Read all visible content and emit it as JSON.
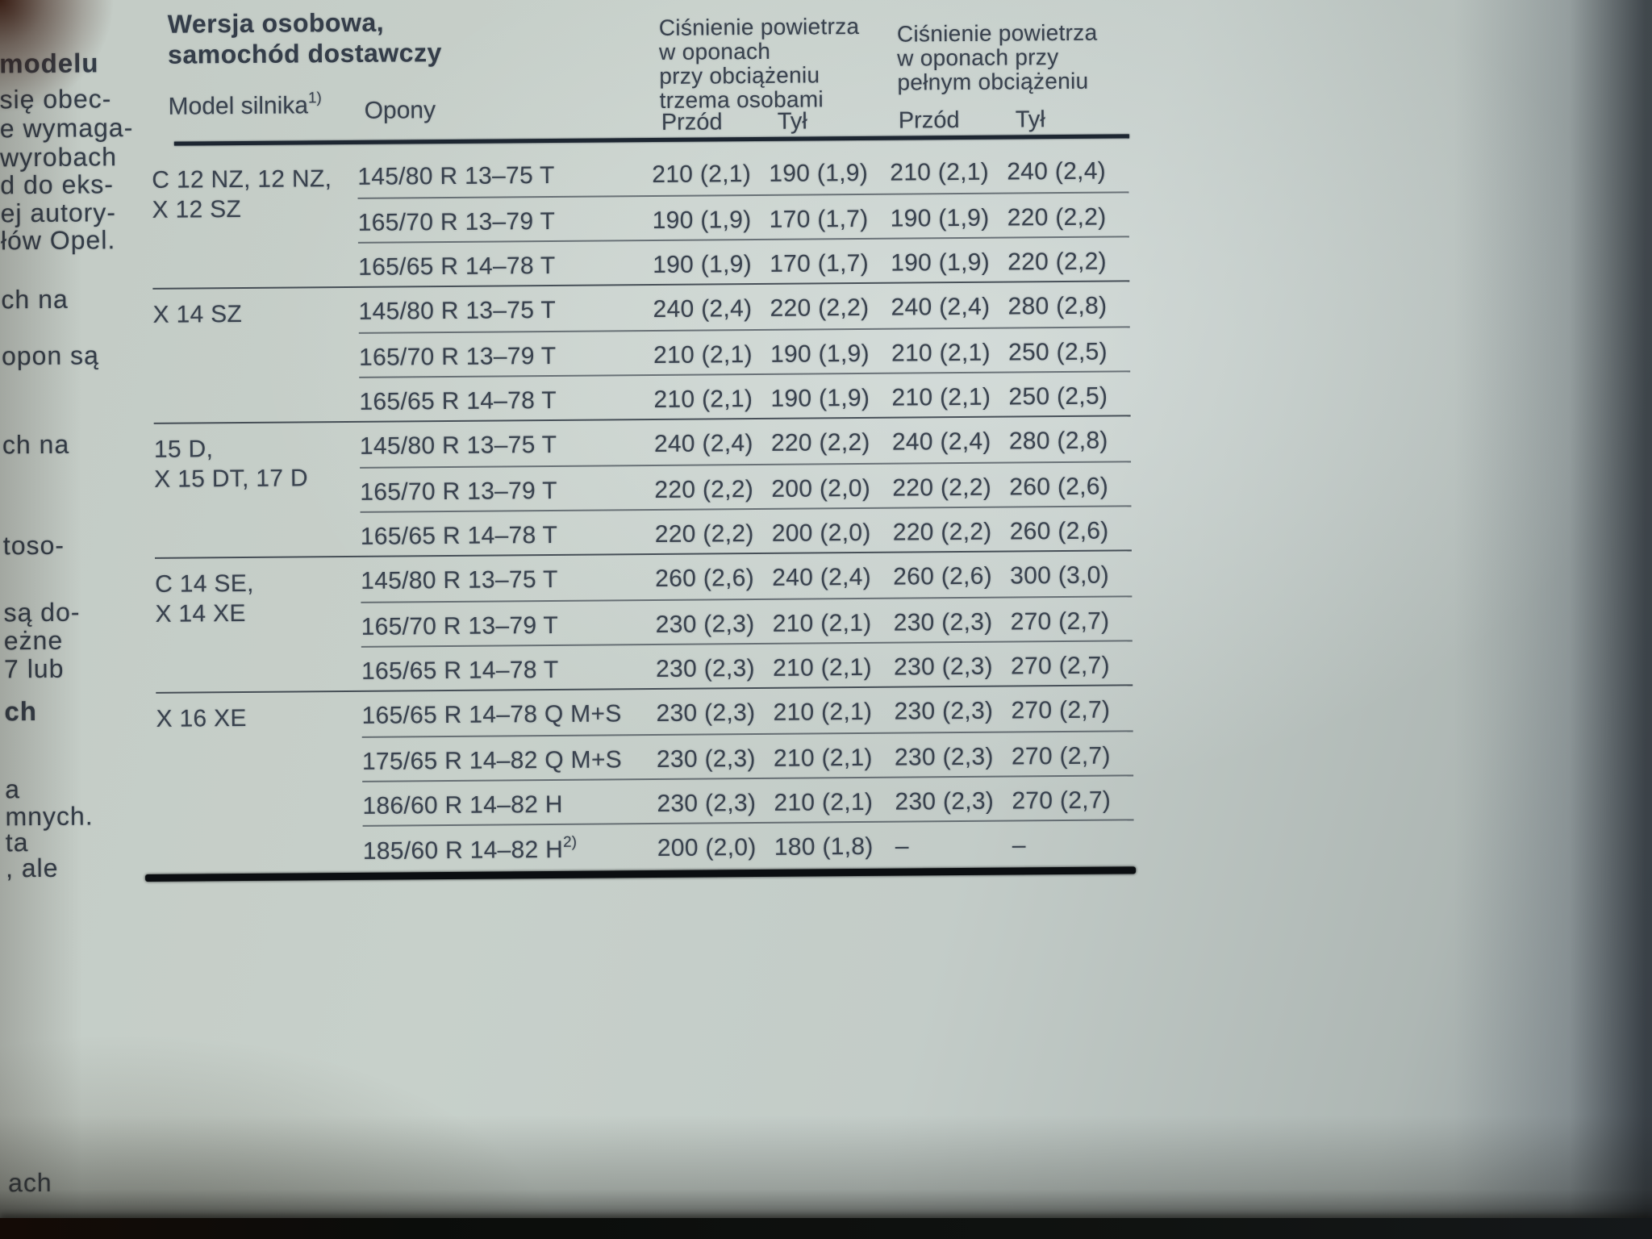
{
  "page_type": "photographed owner's manual page (Opel, Polish) with tire pressure table",
  "colors": {
    "page": "#c3ccc6",
    "ink": "#39424e",
    "rule": "#1d2631"
  },
  "table": {
    "title_lines": [
      "Wersja osobowa,",
      "samochód dostawczy"
    ],
    "col_engine": "Model silnika",
    "col_engine_sup": "1)",
    "col_tires": "Opony",
    "group1_lines": [
      "Ciśnienie powietrza",
      "w oponach",
      "przy obciążeniu",
      "trzema osobami"
    ],
    "group2_lines": [
      "Ciśnienie powietrza",
      "w oponach przy",
      "pełnym obciążeniu"
    ],
    "sub_front": "Przód",
    "sub_rear": "Tył",
    "sections": [
      {
        "engine_lines": [
          "C 12 NZ, 12 NZ,",
          "X 12 SZ"
        ],
        "rows": [
          {
            "tire": "145/80 R 13–75 T",
            "v": [
              "210 (2,1)",
              "190 (1,9)",
              "210 (2,1)",
              "240 (2,4)"
            ]
          },
          {
            "tire": "165/70 R 13–79 T",
            "v": [
              "190 (1,9)",
              "170 (1,7)",
              "190 (1,9)",
              "220 (2,2)"
            ]
          },
          {
            "tire": "165/65 R 14–78 T",
            "v": [
              "190 (1,9)",
              "170 (1,7)",
              "190 (1,9)",
              "220 (2,2)"
            ]
          }
        ]
      },
      {
        "engine_lines": [
          "X 14 SZ"
        ],
        "rows": [
          {
            "tire": "145/80 R 13–75 T",
            "v": [
              "240 (2,4)",
              "220 (2,2)",
              "240 (2,4)",
              "280 (2,8)"
            ]
          },
          {
            "tire": "165/70 R 13–79 T",
            "v": [
              "210 (2,1)",
              "190 (1,9)",
              "210 (2,1)",
              "250 (2,5)"
            ]
          },
          {
            "tire": "165/65 R 14–78 T",
            "v": [
              "210 (2,1)",
              "190 (1,9)",
              "210 (2,1)",
              "250 (2,5)"
            ]
          }
        ]
      },
      {
        "engine_lines": [
          "15 D,",
          "X 15 DT, 17 D"
        ],
        "rows": [
          {
            "tire": "145/80 R 13–75 T",
            "v": [
              "240 (2,4)",
              "220 (2,2)",
              "240 (2,4)",
              "280 (2,8)"
            ]
          },
          {
            "tire": "165/70 R 13–79 T",
            "v": [
              "220 (2,2)",
              "200 (2,0)",
              "220 (2,2)",
              "260 (2,6)"
            ]
          },
          {
            "tire": "165/65 R 14–78 T",
            "v": [
              "220 (2,2)",
              "200 (2,0)",
              "220 (2,2)",
              "260 (2,6)"
            ]
          }
        ]
      },
      {
        "engine_lines": [
          "C 14 SE,",
          "X 14 XE"
        ],
        "rows": [
          {
            "tire": "145/80 R 13–75 T",
            "v": [
              "260 (2,6)",
              "240 (2,4)",
              "260 (2,6)",
              "300 (3,0)"
            ]
          },
          {
            "tire": "165/70 R 13–79 T",
            "v": [
              "230 (2,3)",
              "210 (2,1)",
              "230 (2,3)",
              "270 (2,7)"
            ]
          },
          {
            "tire": "165/65 R 14–78 T",
            "v": [
              "230 (2,3)",
              "210 (2,1)",
              "230 (2,3)",
              "270 (2,7)"
            ]
          }
        ]
      },
      {
        "engine_lines": [
          "X 16 XE"
        ],
        "rows": [
          {
            "tire": "165/65 R 14–78 Q M+S",
            "v": [
              "230 (2,3)",
              "210 (2,1)",
              "230 (2,3)",
              "270 (2,7)"
            ]
          },
          {
            "tire": "175/65 R 14–82 Q M+S",
            "v": [
              "230 (2,3)",
              "210 (2,1)",
              "230 (2,3)",
              "270 (2,7)"
            ]
          },
          {
            "tire": "186/60 R 14–82 H",
            "v": [
              "230 (2,3)",
              "210 (2,1)",
              "230 (2,3)",
              "270 (2,7)"
            ]
          },
          {
            "tire": "185/60 R 14–82 H",
            "tire_sup": "2)",
            "v": [
              "200 (2,0)",
              "180 (1,8)",
              "–",
              "–"
            ]
          }
        ]
      }
    ]
  },
  "margin_fragments": [
    "modelu",
    "się obec-",
    "e wymaga-",
    "wyrobach",
    "d do eks-",
    "ej autory-",
    "łów Opel.",
    "ch na",
    "opon są",
    "ch na",
    "toso-",
    "są do-",
    "eżne",
    "7 lub",
    "ch",
    "a",
    "mnych.",
    "ta",
    ", ale",
    "ach"
  ]
}
